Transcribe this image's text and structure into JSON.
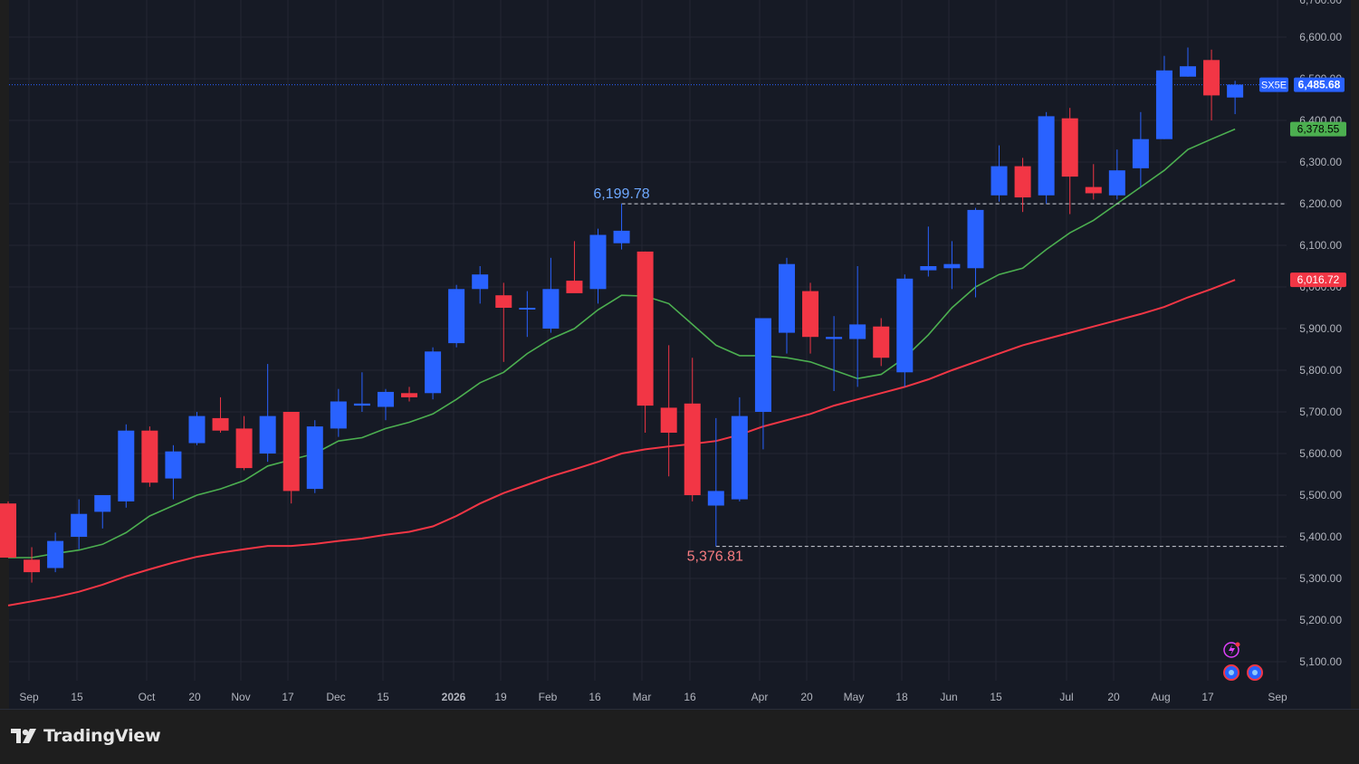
{
  "colors": {
    "background": "#161a25",
    "grid": "#242733",
    "up": "#2962ff",
    "down": "#f23645",
    "ma_short": "#4caf50",
    "ma_long": "#f23645",
    "axis_text": "#b2b5be",
    "last_price_line": "#2962ff"
  },
  "brand": {
    "name": "TradingView"
  },
  "chart_data": {
    "type": "candlestick",
    "interval": "weekly",
    "symbol": "SX5E",
    "last_price": 6485.68,
    "last_price_label": "6,485.68",
    "ylim": [
      5050,
      6700
    ],
    "y_ticks": [
      "5,100.00",
      "5,200.00",
      "5,300.00",
      "5,400.00",
      "5,500.00",
      "5,600.00",
      "5,700.00",
      "5,800.00",
      "5,900.00",
      "6,000.00",
      "6,100.00",
      "6,200.00",
      "6,300.00",
      "6,400.00",
      "6,500.00",
      "6,600.00"
    ],
    "x_labels": [
      "Sep",
      "15",
      "Oct",
      "20",
      "Nov",
      "17",
      "Dec",
      "15",
      "2026",
      "19",
      "Feb",
      "16",
      "Mar",
      "16",
      "Apr",
      "20",
      "May",
      "18",
      "Jun",
      "15",
      "Jul",
      "20",
      "Aug",
      "17",
      "Sep"
    ],
    "candles": [
      {
        "o": 5480,
        "h": 5485,
        "l": 5350,
        "c": 5350
      },
      {
        "o": 5345,
        "h": 5375,
        "l": 5290,
        "c": 5315
      },
      {
        "o": 5325,
        "h": 5410,
        "l": 5315,
        "c": 5390
      },
      {
        "o": 5400,
        "h": 5490,
        "l": 5370,
        "c": 5455
      },
      {
        "o": 5460,
        "h": 5500,
        "l": 5420,
        "c": 5500
      },
      {
        "o": 5485,
        "h": 5670,
        "l": 5470,
        "c": 5655
      },
      {
        "o": 5655,
        "h": 5665,
        "l": 5520,
        "c": 5530
      },
      {
        "o": 5540,
        "h": 5620,
        "l": 5490,
        "c": 5605
      },
      {
        "o": 5625,
        "h": 5700,
        "l": 5620,
        "c": 5690
      },
      {
        "o": 5685,
        "h": 5735,
        "l": 5650,
        "c": 5655
      },
      {
        "o": 5660,
        "h": 5690,
        "l": 5560,
        "c": 5565
      },
      {
        "o": 5600,
        "h": 5815,
        "l": 5580,
        "c": 5690
      },
      {
        "o": 5700,
        "h": 5700,
        "l": 5480,
        "c": 5510
      },
      {
        "o": 5515,
        "h": 5680,
        "l": 5505,
        "c": 5665
      },
      {
        "o": 5660,
        "h": 5755,
        "l": 5640,
        "c": 5725
      },
      {
        "o": 5715,
        "h": 5795,
        "l": 5700,
        "c": 5720
      },
      {
        "o": 5712,
        "h": 5755,
        "l": 5680,
        "c": 5748
      },
      {
        "o": 5745,
        "h": 5760,
        "l": 5725,
        "c": 5735
      },
      {
        "o": 5745,
        "h": 5855,
        "l": 5730,
        "c": 5845
      },
      {
        "o": 5865,
        "h": 6005,
        "l": 5855,
        "c": 5995
      },
      {
        "o": 5995,
        "h": 6050,
        "l": 5960,
        "c": 6030
      },
      {
        "o": 5980,
        "h": 6010,
        "l": 5820,
        "c": 5950
      },
      {
        "o": 5950,
        "h": 5990,
        "l": 5880,
        "c": 5950
      },
      {
        "o": 5900,
        "h": 6070,
        "l": 5890,
        "c": 5995
      },
      {
        "o": 6015,
        "h": 6110,
        "l": 5995,
        "c": 5985
      },
      {
        "o": 5995,
        "h": 6140,
        "l": 5960,
        "c": 6125
      },
      {
        "o": 6105,
        "h": 6199.78,
        "l": 6090,
        "c": 6135
      },
      {
        "o": 6085,
        "h": 6085,
        "l": 5650,
        "c": 5715
      },
      {
        "o": 5710,
        "h": 5860,
        "l": 5545,
        "c": 5650
      },
      {
        "o": 5720,
        "h": 5830,
        "l": 5485,
        "c": 5500
      },
      {
        "o": 5475,
        "h": 5685,
        "l": 5376.81,
        "c": 5510
      },
      {
        "o": 5490,
        "h": 5735,
        "l": 5485,
        "c": 5690
      },
      {
        "o": 5700,
        "h": 5925,
        "l": 5610,
        "c": 5925
      },
      {
        "o": 5890,
        "h": 6070,
        "l": 5840,
        "c": 6055
      },
      {
        "o": 5990,
        "h": 6010,
        "l": 5840,
        "c": 5880
      },
      {
        "o": 5875,
        "h": 5930,
        "l": 5750,
        "c": 5880
      },
      {
        "o": 5875,
        "h": 6050,
        "l": 5760,
        "c": 5910
      },
      {
        "o": 5905,
        "h": 5925,
        "l": 5810,
        "c": 5830
      },
      {
        "o": 5795,
        "h": 6030,
        "l": 5760,
        "c": 6020
      },
      {
        "o": 6040,
        "h": 6145,
        "l": 6025,
        "c": 6050
      },
      {
        "o": 6045,
        "h": 6110,
        "l": 5995,
        "c": 6055
      },
      {
        "o": 6045,
        "h": 6190,
        "l": 5975,
        "c": 6185
      },
      {
        "o": 6220,
        "h": 6340,
        "l": 6205,
        "c": 6290
      },
      {
        "o": 6290,
        "h": 6310,
        "l": 6180,
        "c": 6215
      },
      {
        "o": 6220,
        "h": 6420,
        "l": 6200,
        "c": 6410
      },
      {
        "o": 6405,
        "h": 6430,
        "l": 6175,
        "c": 6265
      },
      {
        "o": 6240,
        "h": 6295,
        "l": 6210,
        "c": 6225
      },
      {
        "o": 6220,
        "h": 6330,
        "l": 6210,
        "c": 6280
      },
      {
        "o": 6285,
        "h": 6420,
        "l": 6240,
        "c": 6355
      },
      {
        "o": 6355,
        "h": 6555,
        "l": 6355,
        "c": 6520
      },
      {
        "o": 6505,
        "h": 6575,
        "l": 6505,
        "c": 6530
      },
      {
        "o": 6545,
        "h": 6570,
        "l": 6400,
        "c": 6460
      },
      {
        "o": 6455,
        "h": 6495,
        "l": 6415,
        "c": 6486
      }
    ],
    "ma_short": {
      "name": "",
      "last_label": "6,378.55",
      "values": [
        5350,
        5350,
        5360,
        5368,
        5382,
        5410,
        5450,
        5475,
        5500,
        5515,
        5535,
        5570,
        5585,
        5600,
        5630,
        5638,
        5660,
        5675,
        5695,
        5730,
        5770,
        5795,
        5840,
        5875,
        5900,
        5945,
        5980,
        5978,
        5960,
        5910,
        5860,
        5835,
        5835,
        5830,
        5820,
        5800,
        5780,
        5790,
        5830,
        5885,
        5950,
        6000,
        6030,
        6045,
        6090,
        6130,
        6160,
        6200,
        6240,
        6280,
        6330,
        6355,
        6379
      ]
    },
    "ma_long": {
      "name": "",
      "last_label": "6,016.72",
      "values": [
        5235,
        5245,
        5255,
        5268,
        5285,
        5305,
        5322,
        5338,
        5352,
        5362,
        5370,
        5378,
        5378,
        5383,
        5390,
        5396,
        5405,
        5412,
        5425,
        5450,
        5480,
        5505,
        5525,
        5545,
        5562,
        5580,
        5600,
        5610,
        5617,
        5623,
        5630,
        5645,
        5665,
        5680,
        5695,
        5715,
        5730,
        5745,
        5760,
        5778,
        5800,
        5820,
        5840,
        5860,
        5875,
        5890,
        5905,
        5920,
        5935,
        5952,
        5975,
        5995,
        6017
      ]
    },
    "annotations": [
      {
        "label": "6,199.78",
        "value": 6199.78,
        "color": "#6ea8fe"
      },
      {
        "label": "5,376.81",
        "value": 5376.81,
        "color": "#f77c80"
      }
    ]
  }
}
